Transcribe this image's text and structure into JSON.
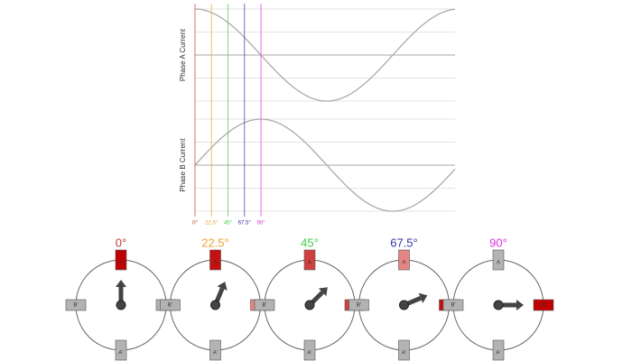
{
  "plots": [
    {
      "label": "Phase A Current",
      "phase": "cos"
    },
    {
      "label": "Phase B Current",
      "phase": "sin"
    }
  ],
  "steps": [
    {
      "value": 0,
      "label": "0°",
      "color": "#c0392b"
    },
    {
      "value": 22.5,
      "label": "22.5°",
      "color": "#f0a030"
    },
    {
      "value": 45,
      "label": "45°",
      "color": "#44cc44"
    },
    {
      "value": 67.5,
      "label": "67.5°",
      "color": "#3333aa"
    },
    {
      "value": 90,
      "label": "90°",
      "color": "#dd33dd"
    }
  ],
  "poles": {
    "top": "A",
    "bottom": "A'",
    "left": "B'",
    "right": "B"
  }
}
